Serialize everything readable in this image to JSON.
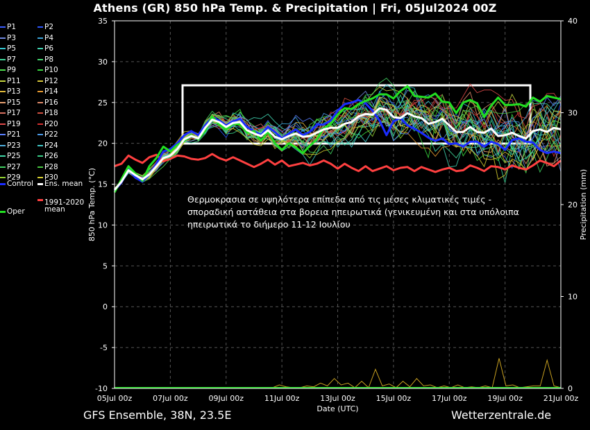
{
  "title": "Athens  (GR)  850 hPa Temp. & Precipitation | Fri, 05Jul2024 00Z",
  "footer": {
    "model": "GFS Ensemble, 38N, 23.5E",
    "site": "Wetterzentrale.de"
  },
  "annotation": [
    "Θερμοκρασια σε υψηλότερα επίπεδα από τις μέσες κλιματικές τιμές -",
    "σποραδική αστάθεια στα βορεια ηπειρωτικά (γενικευμένη και στα υπόλοιπα",
    "ηπειρωτικά το διήμερο 11-12 Ιουλίου"
  ],
  "legend": [
    {
      "label": "P1",
      "color": "#3a5cff"
    },
    {
      "label": "P2",
      "color": "#2b56ff"
    },
    {
      "label": "P3",
      "color": "#6f87e0"
    },
    {
      "label": "P4",
      "color": "#3aa3d8"
    },
    {
      "label": "P5",
      "color": "#34c6d0"
    },
    {
      "label": "P6",
      "color": "#3fd3b0"
    },
    {
      "label": "P7",
      "color": "#3fd89a"
    },
    {
      "label": "P8",
      "color": "#45d870"
    },
    {
      "label": "P9",
      "color": "#4fe04f"
    },
    {
      "label": "P10",
      "color": "#38d640"
    },
    {
      "label": "P11",
      "color": "#c7d63f"
    },
    {
      "label": "P12",
      "color": "#d8c83a"
    },
    {
      "label": "P13",
      "color": "#e0b93a"
    },
    {
      "label": "P14",
      "color": "#e89a30"
    },
    {
      "label": "P15",
      "color": "#e8a070"
    },
    {
      "label": "P16",
      "color": "#e08a6a"
    },
    {
      "label": "P17",
      "color": "#d87060"
    },
    {
      "label": "P18",
      "color": "#d05040"
    },
    {
      "label": "P19",
      "color": "#e04a4a"
    },
    {
      "label": "P20",
      "color": "#d63030"
    },
    {
      "label": "P21",
      "color": "#5a80ff"
    },
    {
      "label": "P22",
      "color": "#4a9ae8"
    },
    {
      "label": "P23",
      "color": "#50b0e0"
    },
    {
      "label": "P24",
      "color": "#40c8c8"
    },
    {
      "label": "P25",
      "color": "#40d8a8"
    },
    {
      "label": "P26",
      "color": "#38d088"
    },
    {
      "label": "P27",
      "color": "#40d060"
    },
    {
      "label": "P28",
      "color": "#48c840"
    },
    {
      "label": "P29",
      "color": "#90d030"
    },
    {
      "label": "P30",
      "color": "#d8d030"
    },
    {
      "label": "Control",
      "color": "#1a2cff"
    },
    {
      "label": "Ens. mean",
      "color": "#ffffff"
    },
    {
      "label": "Oper",
      "color": "#22e022"
    },
    {
      "label": "1991-2020 mean",
      "color": "#ff4040"
    }
  ],
  "chart_data": {
    "type": "line",
    "title": "Athens  (GR)  850 hPa Temp. & Precipitation | Fri, 05Jul2024 00Z",
    "xlabel": "Date (UTC)",
    "ylabel": "850 hPa Temp. (°C)",
    "y2label": "Precipitation (mm)",
    "xlim": [
      "05Jul 00z",
      "21Jul 00z"
    ],
    "x_ticks": [
      "05Jul 00z",
      "07Jul 00z",
      "09Jul 00z",
      "11Jul 00z",
      "13Jul 00z",
      "15Jul 00z",
      "17Jul 00z",
      "19Jul 00z",
      "21Jul 00z"
    ],
    "ylim": [
      -10,
      35
    ],
    "y_ticks": [
      "35",
      "30",
      "25",
      "20",
      "15",
      "10",
      "5",
      "0",
      "-5",
      "-10"
    ],
    "y2lim": [
      0,
      40
    ],
    "y2_ticks": [
      "40",
      "30",
      "20",
      "10",
      "0"
    ],
    "grid": true,
    "legend_position": "left",
    "x_step_hours": 6,
    "series": [
      {
        "name": "Control",
        "values": [
          14.2,
          15.2,
          16.8,
          15.8,
          15.3,
          16.2,
          17.5,
          19.0,
          19.3,
          20.0,
          21.0,
          21.5,
          21.0,
          22.2,
          23.2,
          22.8,
          22.2,
          22.7,
          23.0,
          22.0,
          21.5,
          21.0,
          22.0,
          21.4,
          20.6,
          21.2,
          21.7,
          21.0,
          21.4,
          22.3,
          22.3,
          22.8,
          24.0,
          24.8,
          25.0,
          25.3,
          24.9,
          24.0,
          22.8,
          21.0,
          22.7,
          23.1,
          22.2,
          21.8,
          21.3,
          20.7,
          20.3,
          20.6,
          19.9,
          20.0,
          19.6,
          20.2,
          20.2,
          19.6,
          20.2,
          19.9,
          19.2,
          20.4,
          20.6,
          20.2,
          20.1,
          19.2,
          18.8,
          19.0,
          18.8
        ]
      },
      {
        "name": "Ens. mean",
        "values": [
          14.3,
          15.3,
          16.7,
          16.1,
          15.6,
          16.2,
          17.2,
          18.2,
          18.5,
          19.3,
          20.5,
          20.9,
          20.6,
          21.9,
          22.9,
          22.6,
          22.0,
          22.5,
          22.6,
          21.6,
          21.2,
          20.9,
          21.6,
          20.8,
          20.5,
          20.9,
          21.2,
          20.8,
          20.9,
          21.3,
          21.7,
          21.9,
          21.9,
          22.4,
          22.6,
          23.3,
          23.6,
          23.5,
          24.3,
          24.1,
          23.2,
          23.1,
          23.7,
          23.3,
          23.1,
          22.4,
          22.6,
          23.0,
          22.2,
          21.4,
          21.4,
          22.0,
          21.4,
          21.3,
          21.8,
          20.9,
          21.0,
          21.3,
          20.9,
          20.6,
          21.5,
          21.7,
          21.4,
          21.9,
          21.7
        ]
      },
      {
        "name": "Oper",
        "values": [
          14.0,
          15.6,
          17.2,
          16.3,
          15.4,
          17.2,
          18.2,
          19.6,
          19.0,
          19.8,
          20.3,
          21.0,
          20.5,
          21.5,
          23.3,
          22.3,
          21.7,
          22.4,
          22.3,
          21.3,
          21.5,
          20.3,
          21.4,
          20.0,
          19.2,
          20.0,
          19.5,
          18.8,
          19.7,
          20.5,
          21.8,
          22.4,
          23.5,
          24.3,
          24.2,
          24.8,
          25.2,
          25.5,
          26.0,
          26.0,
          25.5,
          26.4,
          27.0,
          25.8,
          25.7,
          25.6,
          26.1,
          25.1,
          25.0,
          23.7,
          25.0,
          25.3,
          24.9,
          23.2,
          24.6,
          25.6,
          24.7,
          24.7,
          24.8,
          24.5,
          25.6,
          25.1,
          25.8,
          25.6,
          25.4
        ]
      },
      {
        "name": "1991-2020 mean",
        "values": [
          17.2,
          17.5,
          18.5,
          18.0,
          17.6,
          18.3,
          18.6,
          17.8,
          18.1,
          18.5,
          18.4,
          18.1,
          18.0,
          18.2,
          18.7,
          18.2,
          17.9,
          18.3,
          17.9,
          17.5,
          17.1,
          17.5,
          18.0,
          17.4,
          17.9,
          17.2,
          17.4,
          17.6,
          17.3,
          17.5,
          17.9,
          17.5,
          16.9,
          17.5,
          17.0,
          16.6,
          17.2,
          16.6,
          16.9,
          17.2,
          16.7,
          17.0,
          17.1,
          16.6,
          17.1,
          16.8,
          16.5,
          16.8,
          17.0,
          16.6,
          16.7,
          17.3,
          17.0,
          16.6,
          17.2,
          17.1,
          16.8,
          17.3,
          17.0,
          16.8,
          17.3,
          17.9,
          17.6,
          17.2,
          17.9
        ]
      }
    ],
    "precipitation": {
      "max_member_mm": [
        0,
        0,
        0,
        0,
        0,
        0,
        0,
        0,
        0,
        0,
        0,
        0,
        0,
        0,
        0,
        0,
        0,
        0,
        0,
        0,
        0,
        0,
        0,
        0,
        0.3,
        0.1,
        0,
        0,
        0.2,
        0.1,
        0.5,
        0.2,
        1.0,
        0.3,
        0.5,
        0,
        0.7,
        0,
        2.0,
        0.2,
        0.4,
        0,
        0.7,
        0.1,
        1.0,
        0.2,
        0.3,
        0,
        0.2,
        0,
        0.3,
        0,
        0.1,
        0,
        0.2,
        0,
        3.2,
        0.2,
        0.3,
        0,
        0.1,
        0.2,
        0.2,
        3.0,
        0.2,
        0
      ]
    }
  }
}
